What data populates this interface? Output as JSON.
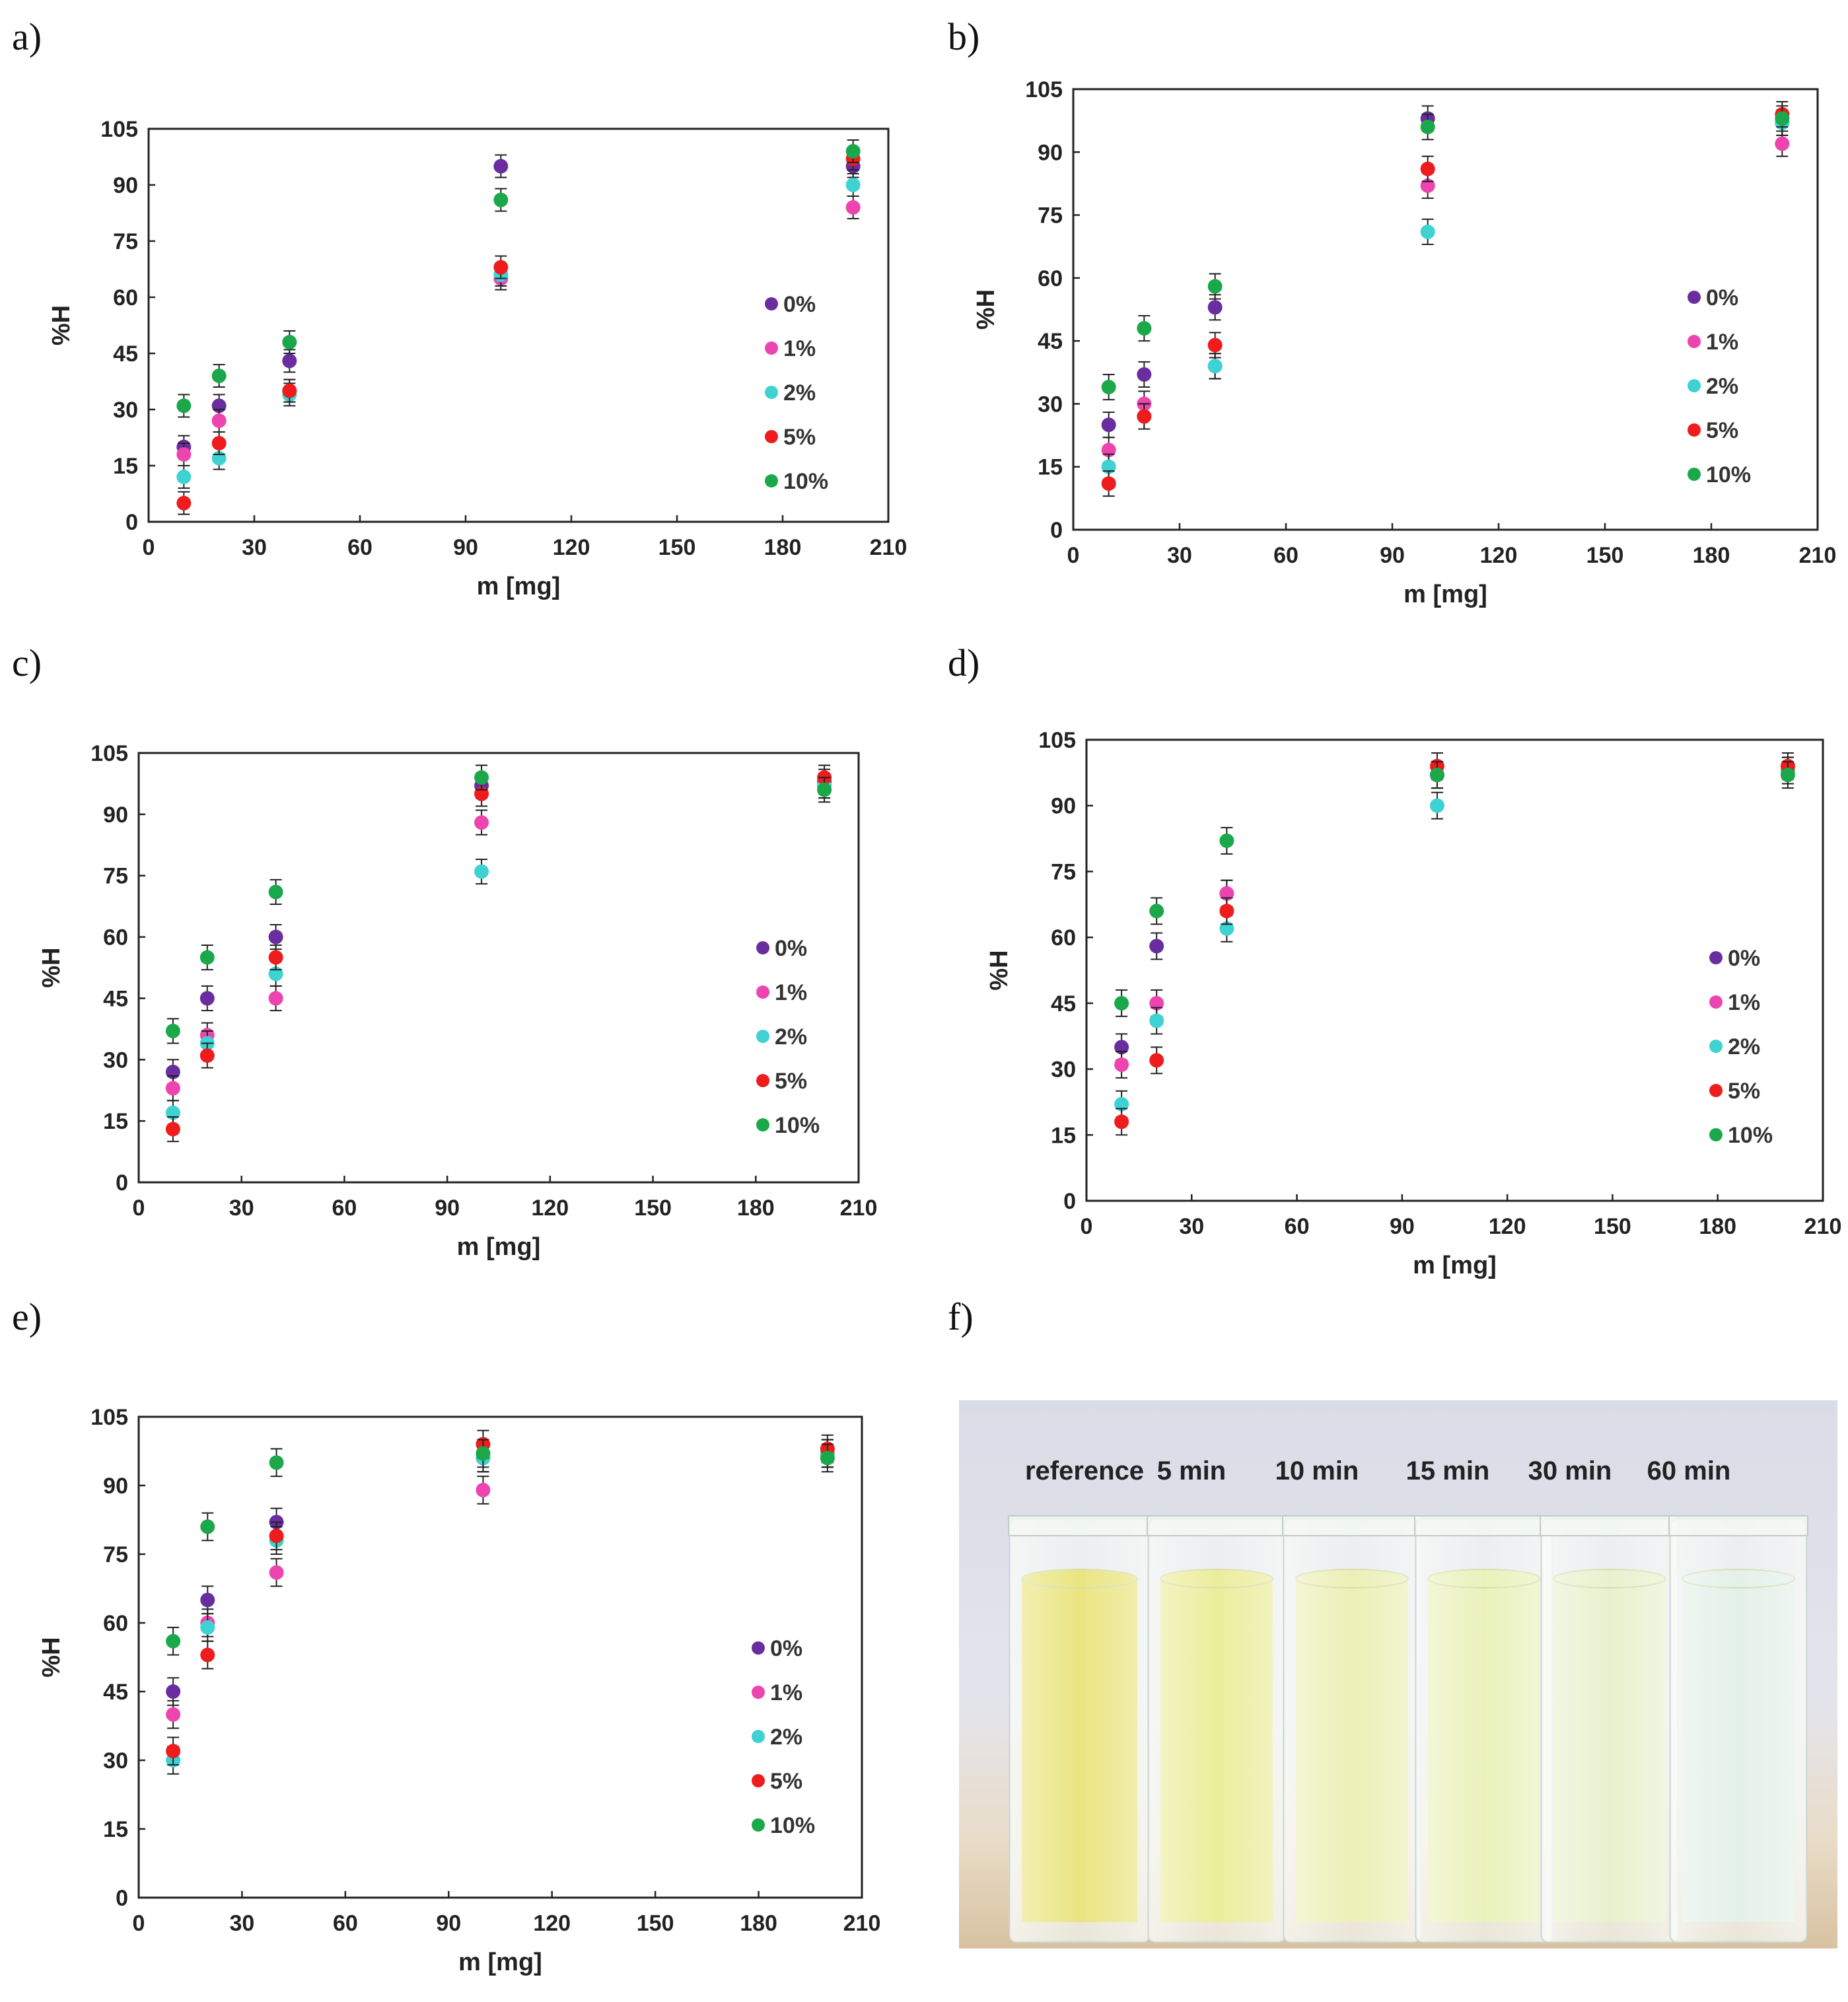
{
  "panel_labels": [
    "a)",
    "b)",
    "c)",
    "d)",
    "e)",
    "f)"
  ],
  "colors": {
    "0%": "#6a2da0",
    "1%": "#ee44b0",
    "2%": "#3ed2d2",
    "5%": "#ee1c1c",
    "10%": "#1aa84a"
  },
  "chart_data": [
    {
      "type": "scatter",
      "panel": "a)",
      "xlabel": "m [mg]",
      "ylabel": "%H",
      "xlim": [
        0,
        210
      ],
      "ylim": [
        0,
        105
      ],
      "xticks": [
        0,
        30,
        60,
        90,
        120,
        150,
        180,
        210
      ],
      "yticks": [
        0,
        15,
        30,
        45,
        60,
        75,
        90,
        105
      ],
      "x": [
        10,
        20,
        40,
        100,
        200
      ],
      "series": [
        {
          "name": "0%",
          "values": [
            20,
            31,
            43,
            95,
            95
          ]
        },
        {
          "name": "1%",
          "values": [
            18,
            27,
            35,
            65,
            84
          ]
        },
        {
          "name": "2%",
          "values": [
            12,
            17,
            34,
            66,
            90
          ]
        },
        {
          "name": "5%",
          "values": [
            5,
            21,
            35,
            68,
            97
          ]
        },
        {
          "name": "10%",
          "values": [
            31,
            39,
            48,
            86,
            99
          ]
        }
      ],
      "legend": [
        "0%",
        "1%",
        "2%",
        "5%",
        "10%"
      ]
    },
    {
      "type": "scatter",
      "panel": "b)",
      "xlabel": "m [mg]",
      "ylabel": "%H",
      "xlim": [
        0,
        210
      ],
      "ylim": [
        0,
        105
      ],
      "xticks": [
        0,
        30,
        60,
        90,
        120,
        150,
        180,
        210
      ],
      "yticks": [
        0,
        15,
        30,
        45,
        60,
        75,
        90,
        105
      ],
      "x": [
        10,
        20,
        40,
        100,
        200
      ],
      "series": [
        {
          "name": "0%",
          "values": [
            25,
            37,
            53,
            98,
            97
          ]
        },
        {
          "name": "1%",
          "values": [
            19,
            30,
            39,
            82,
            92
          ]
        },
        {
          "name": "2%",
          "values": [
            15,
            27,
            39,
            71,
            97
          ]
        },
        {
          "name": "5%",
          "values": [
            11,
            27,
            44,
            86,
            99
          ]
        },
        {
          "name": "10%",
          "values": [
            34,
            48,
            58,
            96,
            98
          ]
        }
      ],
      "legend": [
        "0%",
        "1%",
        "2%",
        "5%",
        "10%"
      ]
    },
    {
      "type": "scatter",
      "panel": "c)",
      "xlabel": "m [mg]",
      "ylabel": "%H",
      "xlim": [
        0,
        210
      ],
      "ylim": [
        0,
        105
      ],
      "xticks": [
        0,
        30,
        60,
        90,
        120,
        150,
        180,
        210
      ],
      "yticks": [
        0,
        15,
        30,
        45,
        60,
        75,
        90,
        105
      ],
      "x": [
        10,
        20,
        40,
        100,
        200
      ],
      "series": [
        {
          "name": "0%",
          "values": [
            27,
            45,
            60,
            97,
            98
          ]
        },
        {
          "name": "1%",
          "values": [
            23,
            36,
            45,
            88,
            97
          ]
        },
        {
          "name": "2%",
          "values": [
            17,
            34,
            51,
            76,
            97
          ]
        },
        {
          "name": "5%",
          "values": [
            13,
            31,
            55,
            95,
            99
          ]
        },
        {
          "name": "10%",
          "values": [
            37,
            55,
            71,
            99,
            96
          ]
        }
      ],
      "legend": [
        "0%",
        "1%",
        "2%",
        "5%",
        "10%"
      ]
    },
    {
      "type": "scatter",
      "panel": "d)",
      "xlabel": "m [mg]",
      "ylabel": "%H",
      "xlim": [
        0,
        210
      ],
      "ylim": [
        0,
        105
      ],
      "xticks": [
        0,
        30,
        60,
        90,
        120,
        150,
        180,
        210
      ],
      "yticks": [
        0,
        15,
        30,
        45,
        60,
        75,
        90,
        105
      ],
      "x": [
        10,
        20,
        40,
        100,
        200
      ],
      "series": [
        {
          "name": "0%",
          "values": [
            35,
            58,
            70,
            97,
            98
          ]
        },
        {
          "name": "1%",
          "values": [
            31,
            45,
            70,
            97,
            98
          ]
        },
        {
          "name": "2%",
          "values": [
            22,
            41,
            62,
            90,
            98
          ]
        },
        {
          "name": "5%",
          "values": [
            18,
            32,
            66,
            99,
            99
          ]
        },
        {
          "name": "10%",
          "values": [
            45,
            66,
            82,
            97,
            97
          ]
        }
      ],
      "legend": [
        "0%",
        "1%",
        "2%",
        "5%",
        "10%"
      ]
    },
    {
      "type": "scatter",
      "panel": "e)",
      "xlabel": "m [mg]",
      "ylabel": "%H",
      "xlim": [
        0,
        210
      ],
      "ylim": [
        0,
        105
      ],
      "xticks": [
        0,
        30,
        60,
        90,
        120,
        150,
        180,
        210
      ],
      "yticks": [
        0,
        15,
        30,
        45,
        60,
        75,
        90,
        105
      ],
      "x": [
        10,
        20,
        40,
        100,
        200
      ],
      "series": [
        {
          "name": "0%",
          "values": [
            45,
            65,
            82,
            96,
            97
          ]
        },
        {
          "name": "1%",
          "values": [
            40,
            60,
            71,
            89,
            97
          ]
        },
        {
          "name": "2%",
          "values": [
            30,
            59,
            78,
            96,
            97
          ]
        },
        {
          "name": "5%",
          "values": [
            32,
            53,
            79,
            99,
            98
          ]
        },
        {
          "name": "10%",
          "values": [
            56,
            81,
            95,
            97,
            96
          ]
        }
      ],
      "legend": [
        "0%",
        "1%",
        "2%",
        "5%",
        "10%"
      ]
    }
  ],
  "photo": {
    "labels": [
      "reference",
      "5 min",
      "10 min",
      "15 min",
      "30 min",
      "60 min"
    ],
    "liquid_colors": [
      "#e6e06a",
      "#e8ea8a",
      "#e8edaa",
      "#e6efb0",
      "#e4efc6",
      "#dfeee6"
    ]
  }
}
